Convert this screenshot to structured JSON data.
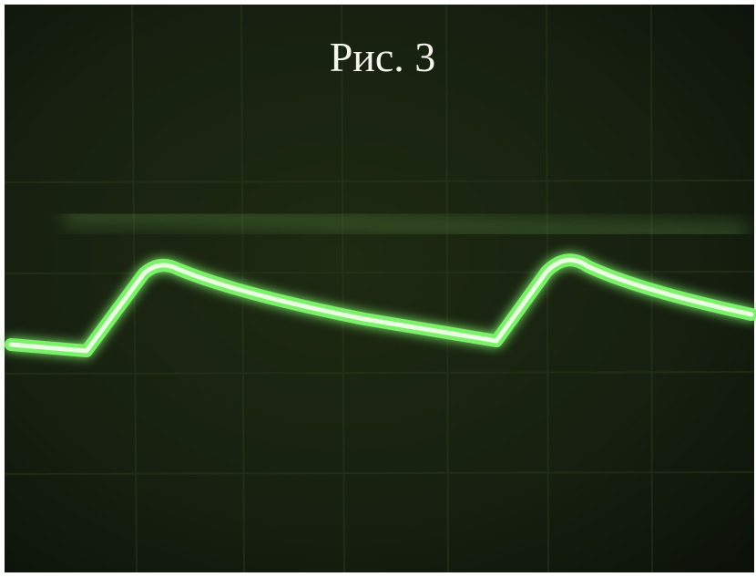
{
  "caption": "Рис. 3"
}
